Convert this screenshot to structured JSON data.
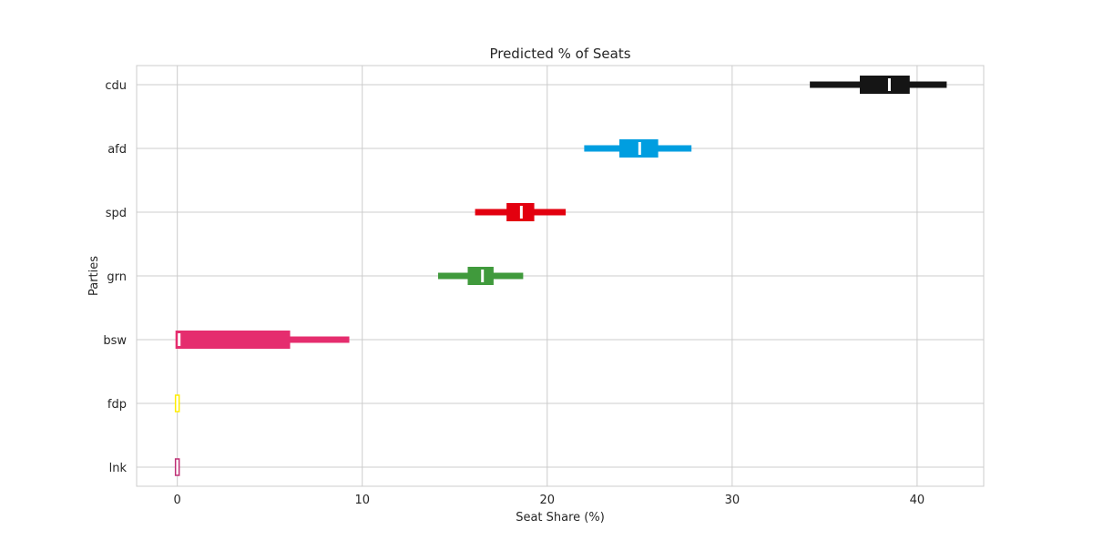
{
  "chart_data": {
    "type": "interval",
    "title": "Predicted % of Seats",
    "xlabel": "Seat Share (%)",
    "ylabel": "Parties",
    "xlim": [
      -2.2,
      43.6
    ],
    "xticks": [
      0,
      10,
      20,
      30,
      40
    ],
    "grid": true,
    "categories": [
      "cdu",
      "afd",
      "spd",
      "grn",
      "bsw",
      "fdp",
      "lnk"
    ],
    "series": [
      {
        "category": "cdu",
        "color": "#151515",
        "outer": [
          34.2,
          41.6
        ],
        "inner": [
          37.0,
          39.6
        ],
        "median": 38.5,
        "box_style": "filled"
      },
      {
        "category": "afd",
        "color": "#009ee0",
        "outer": [
          22.0,
          27.8
        ],
        "inner": [
          24.0,
          26.0
        ],
        "median": 25.0,
        "box_style": "filled"
      },
      {
        "category": "spd",
        "color": "#e3000f",
        "outer": [
          16.1,
          21.0
        ],
        "inner": [
          17.9,
          19.3
        ],
        "median": 18.6,
        "box_style": "filled"
      },
      {
        "category": "grn",
        "color": "#409a3c",
        "outer": [
          14.1,
          18.7
        ],
        "inner": [
          15.8,
          17.1
        ],
        "median": 16.5,
        "box_style": "filled"
      },
      {
        "category": "bsw",
        "color": "#e52d6e",
        "outer": [
          0,
          9.3
        ],
        "inner": [
          0,
          6.1
        ],
        "median": 0.1,
        "box_style": "filled"
      },
      {
        "category": "fdp",
        "color": "#ffed00",
        "outer": [
          0,
          0
        ],
        "inner": [
          0,
          0
        ],
        "median": 0,
        "box_style": "hollow"
      },
      {
        "category": "lnk",
        "color": "#be3075",
        "outer": [
          0,
          0
        ],
        "inner": [
          0,
          0
        ],
        "median": 0,
        "box_style": "hollow"
      }
    ]
  }
}
